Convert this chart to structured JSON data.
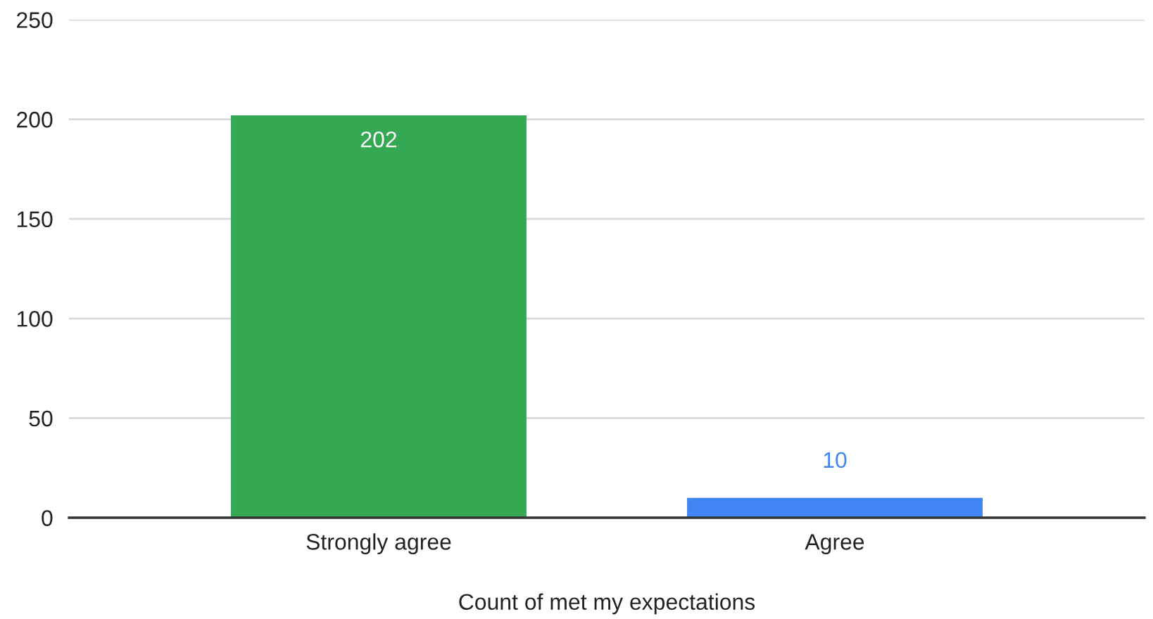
{
  "chart_data": {
    "type": "bar",
    "xlabel": "Count of met my expectations",
    "categories": [
      "Strongly agree",
      "Agree"
    ],
    "values": [
      202,
      10
    ],
    "colors": [
      "#34a853",
      "#4285f4"
    ],
    "ylim": [
      0,
      250
    ],
    "yticks": [
      0,
      50,
      100,
      150,
      200,
      250
    ],
    "grid": "y",
    "data_labels": true
  }
}
